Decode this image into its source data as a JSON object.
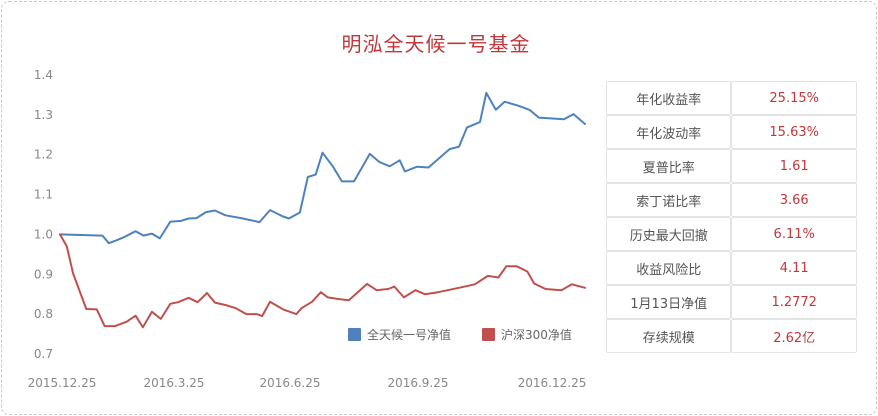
{
  "title": "明泓全天候一号基金",
  "chart_data": {
    "type": "line",
    "title": "明泓全天候一号基金",
    "x_ticks": [
      "2015.12.25",
      "2016.3.25",
      "2016.6.25",
      "2016.9.25",
      "2016.12.25"
    ],
    "y_ticks": [
      "1.4",
      "1.3",
      "1.2",
      "1.1",
      "1.0",
      "0.9",
      "0.8",
      "0.7"
    ],
    "ylim": [
      0.7,
      1.4
    ],
    "xlim": [
      0,
      1
    ],
    "grid": false,
    "legend_position": "bottom-right",
    "series": [
      {
        "name": "全天候一号净值",
        "color": "#4f81bd",
        "points": [
          [
            0.0,
            1.0
          ],
          [
            0.081,
            0.997
          ],
          [
            0.093,
            0.978
          ],
          [
            0.107,
            0.985
          ],
          [
            0.122,
            0.993
          ],
          [
            0.144,
            1.008
          ],
          [
            0.159,
            0.997
          ],
          [
            0.175,
            1.002
          ],
          [
            0.19,
            0.99
          ],
          [
            0.21,
            1.032
          ],
          [
            0.23,
            1.034
          ],
          [
            0.245,
            1.04
          ],
          [
            0.26,
            1.041
          ],
          [
            0.278,
            1.056
          ],
          [
            0.295,
            1.06
          ],
          [
            0.315,
            1.048
          ],
          [
            0.345,
            1.041
          ],
          [
            0.38,
            1.031
          ],
          [
            0.4,
            1.061
          ],
          [
            0.425,
            1.045
          ],
          [
            0.436,
            1.04
          ],
          [
            0.457,
            1.055
          ],
          [
            0.472,
            1.144
          ],
          [
            0.487,
            1.15
          ],
          [
            0.5,
            1.205
          ],
          [
            0.52,
            1.17
          ],
          [
            0.537,
            1.133
          ],
          [
            0.56,
            1.133
          ],
          [
            0.59,
            1.202
          ],
          [
            0.608,
            1.182
          ],
          [
            0.628,
            1.171
          ],
          [
            0.647,
            1.186
          ],
          [
            0.657,
            1.158
          ],
          [
            0.68,
            1.17
          ],
          [
            0.702,
            1.168
          ],
          [
            0.742,
            1.214
          ],
          [
            0.76,
            1.22
          ],
          [
            0.775,
            1.268
          ],
          [
            0.8,
            1.282
          ],
          [
            0.812,
            1.355
          ],
          [
            0.83,
            1.313
          ],
          [
            0.847,
            1.333
          ],
          [
            0.875,
            1.322
          ],
          [
            0.895,
            1.312
          ],
          [
            0.912,
            1.293
          ],
          [
            0.96,
            1.289
          ],
          [
            0.978,
            1.302
          ],
          [
            1.0,
            1.277
          ]
        ]
      },
      {
        "name": "沪深300净值",
        "color": "#c0504d",
        "points": [
          [
            0.0,
            1.0
          ],
          [
            0.013,
            0.97
          ],
          [
            0.025,
            0.902
          ],
          [
            0.05,
            0.813
          ],
          [
            0.07,
            0.812
          ],
          [
            0.085,
            0.77
          ],
          [
            0.105,
            0.77
          ],
          [
            0.127,
            0.781
          ],
          [
            0.144,
            0.796
          ],
          [
            0.158,
            0.767
          ],
          [
            0.175,
            0.806
          ],
          [
            0.192,
            0.788
          ],
          [
            0.21,
            0.826
          ],
          [
            0.225,
            0.83
          ],
          [
            0.245,
            0.841
          ],
          [
            0.262,
            0.83
          ],
          [
            0.28,
            0.853
          ],
          [
            0.295,
            0.829
          ],
          [
            0.315,
            0.823
          ],
          [
            0.335,
            0.815
          ],
          [
            0.355,
            0.8
          ],
          [
            0.375,
            0.8
          ],
          [
            0.385,
            0.795
          ],
          [
            0.4,
            0.831
          ],
          [
            0.425,
            0.812
          ],
          [
            0.45,
            0.8
          ],
          [
            0.46,
            0.815
          ],
          [
            0.48,
            0.831
          ],
          [
            0.497,
            0.855
          ],
          [
            0.51,
            0.842
          ],
          [
            0.53,
            0.838
          ],
          [
            0.55,
            0.835
          ],
          [
            0.585,
            0.876
          ],
          [
            0.603,
            0.86
          ],
          [
            0.625,
            0.863
          ],
          [
            0.637,
            0.869
          ],
          [
            0.655,
            0.842
          ],
          [
            0.677,
            0.86
          ],
          [
            0.695,
            0.85
          ],
          [
            0.72,
            0.855
          ],
          [
            0.76,
            0.866
          ],
          [
            0.79,
            0.875
          ],
          [
            0.815,
            0.896
          ],
          [
            0.835,
            0.892
          ],
          [
            0.85,
            0.92
          ],
          [
            0.87,
            0.92
          ],
          [
            0.89,
            0.907
          ],
          [
            0.903,
            0.877
          ],
          [
            0.925,
            0.863
          ],
          [
            0.955,
            0.86
          ],
          [
            0.975,
            0.875
          ],
          [
            1.0,
            0.866
          ]
        ]
      }
    ]
  },
  "stats": [
    {
      "label": "年化收益率",
      "value": "25.15%"
    },
    {
      "label": "年化波动率",
      "value": "15.63%"
    },
    {
      "label": "夏普比率",
      "value": "1.61"
    },
    {
      "label": "索丁诺比率",
      "value": "3.66"
    },
    {
      "label": "历史最大回撤",
      "value": "6.11%"
    },
    {
      "label": "收益风险比",
      "value": "4.11"
    },
    {
      "label": "1月13日净值",
      "value": "1.2772"
    },
    {
      "label": "存续规模",
      "value": "2.62亿"
    }
  ]
}
